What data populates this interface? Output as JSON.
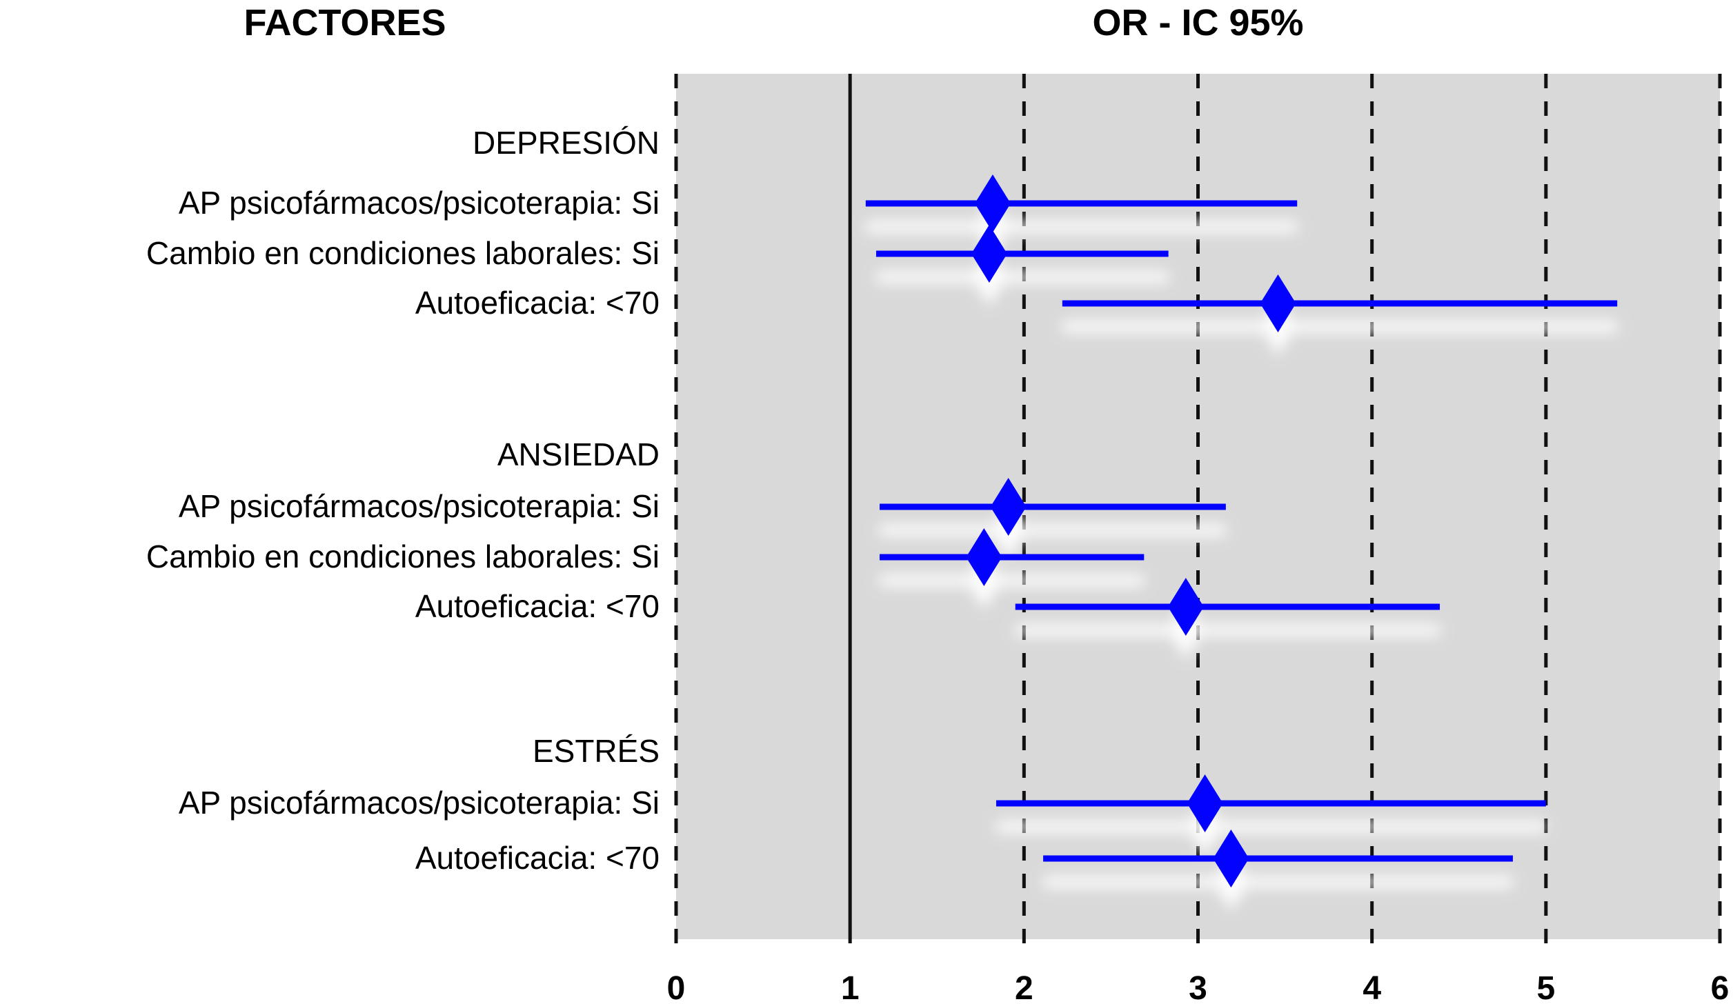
{
  "titles": {
    "left": "FACTORES",
    "right": "OR - IC 95%"
  },
  "colors": {
    "marker": "#0202fe",
    "plot_bg": "#d9d9d9",
    "grid": "#111111",
    "text": "#000000",
    "glow": "#ffffff"
  },
  "chart_data": {
    "type": "scatter",
    "subtype": "forest-plot",
    "title": "OR - IC 95%",
    "xlabel": "",
    "ylabel": "FACTORES",
    "xlim": [
      0,
      6
    ],
    "reference_line": 1,
    "x_ticks": [
      0,
      1,
      2,
      3,
      4,
      5,
      6
    ],
    "x_tick_labels": [
      "0",
      "1",
      "2",
      "3",
      "4",
      "5",
      "6"
    ],
    "grid": "dashed-vertical",
    "legend_position": "none",
    "groups": [
      {
        "header": "DEPRESIÓN",
        "rows": [
          {
            "label": "AP psicofármacos/psicoterapia: Si",
            "or": 1.82,
            "ci_low": 1.09,
            "ci_high": 3.57
          },
          {
            "label": "Cambio en condiciones laborales: Si",
            "or": 1.8,
            "ci_low": 1.15,
            "ci_high": 2.83
          },
          {
            "label": "Autoeficacia: <70",
            "or": 3.46,
            "ci_low": 2.22,
            "ci_high": 5.41
          }
        ]
      },
      {
        "header": "ANSIEDAD",
        "rows": [
          {
            "label": "AP psicofármacos/psicoterapia: Si",
            "or": 1.91,
            "ci_low": 1.17,
            "ci_high": 3.16
          },
          {
            "label": "Cambio en condiciones laborales: Si",
            "or": 1.77,
            "ci_low": 1.17,
            "ci_high": 2.69
          },
          {
            "label": "Autoeficacia: <70",
            "or": 2.93,
            "ci_low": 1.95,
            "ci_high": 4.39
          }
        ]
      },
      {
        "header": "ESTRÉS",
        "rows": [
          {
            "label": "AP psicofármacos/psicoterapia: Si",
            "or": 3.04,
            "ci_low": 1.84,
            "ci_high": 5.0
          },
          {
            "label": "Autoeficacia: <70",
            "or": 3.19,
            "ci_low": 2.11,
            "ci_high": 4.81
          }
        ]
      }
    ]
  }
}
